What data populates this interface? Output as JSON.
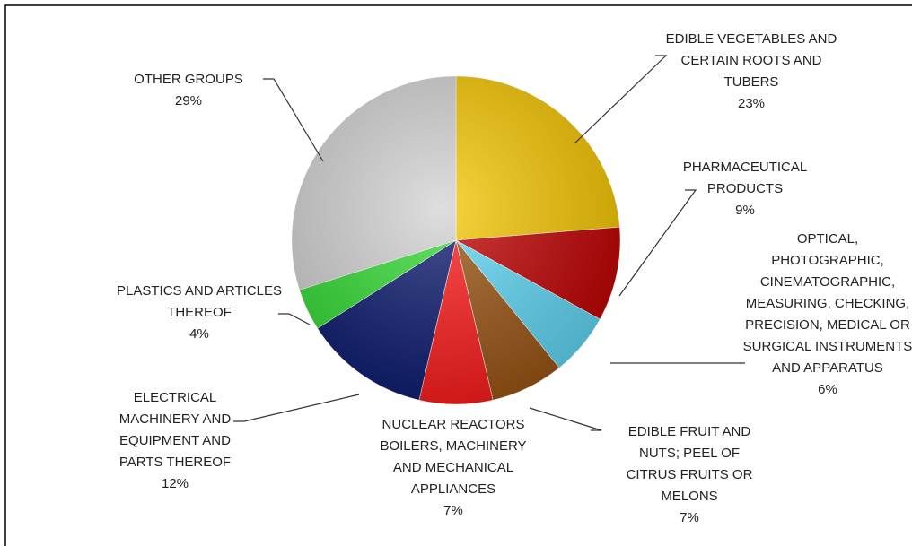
{
  "chart_data": {
    "type": "pie",
    "categories": [
      "EDIBLE VEGETABLES AND CERTAIN ROOTS AND TUBERS",
      "PHARMACEUTICAL PRODUCTS",
      "OPTICAL, PHOTOGRAPHIC, CINEMATOGRAPHIC, MEASURING, CHECKING, PRECISION, MEDICAL OR SURGICAL INSTRUMENTS AND APPARATUS",
      "EDIBLE FRUIT AND NUTS; PEEL OF CITRUS FRUITS OR MELONS",
      "NUCLEAR REACTORS BOILERS, MACHINERY AND MECHANICAL APPLIANCES",
      "ELECTRICAL MACHINERY AND EQUIPMENT AND PARTS THEREOF",
      "PLASTICS AND ARTICLES THEREOF",
      "OTHER GROUPS"
    ],
    "values": [
      23,
      9,
      6,
      7,
      7,
      12,
      4,
      29
    ],
    "value_labels": [
      "23%",
      "9%",
      "6%",
      "7%",
      "7%",
      "12%",
      "4%",
      "29%"
    ],
    "colors": [
      "#f6c700",
      "#c00000",
      "#5fd8f5",
      "#9a5412",
      "#ff1a1a",
      "#0b1a70",
      "#33dd33",
      "#d3d3d3"
    ]
  }
}
